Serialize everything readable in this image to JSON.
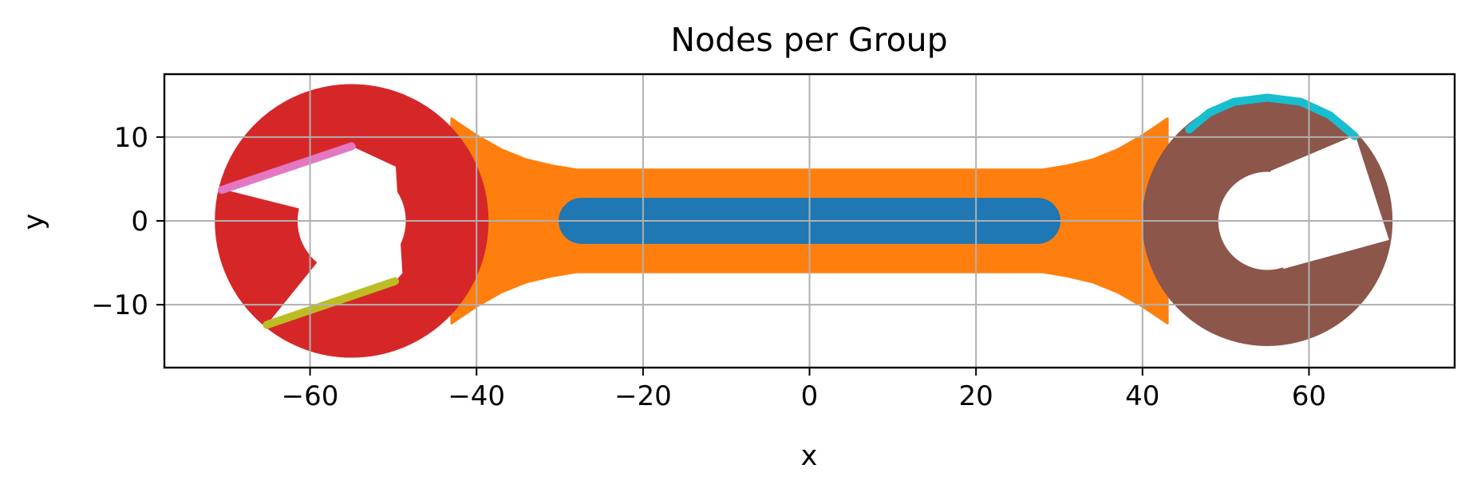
{
  "chart_data": {
    "type": "scatter",
    "title": "Nodes per Group",
    "xlabel": "x",
    "ylabel": "y",
    "xlim": [
      -77.5,
      77.5
    ],
    "ylim": [
      -17.5,
      17.5
    ],
    "xticks": [
      -60,
      -40,
      -20,
      0,
      20,
      40,
      60
    ],
    "yticks": [
      -10,
      0,
      10
    ],
    "xtick_labels": [
      "−60",
      "−40",
      "−20",
      "0",
      "20",
      "40",
      "60"
    ],
    "ytick_labels": [
      "−10",
      "0",
      "10"
    ],
    "grid": true,
    "legend": false,
    "series": [
      {
        "color": "#ff7f0e",
        "shape": "handle-polygon",
        "polygon": [
          [
            -43,
            12.2
          ],
          [
            -40,
            10.2
          ],
          [
            -37,
            8.5
          ],
          [
            -34,
            7.3
          ],
          [
            -31,
            6.6
          ],
          [
            -28,
            6.1
          ],
          [
            28,
            6.1
          ],
          [
            31,
            6.6
          ],
          [
            34,
            7.3
          ],
          [
            37,
            8.5
          ],
          [
            40,
            10.2
          ],
          [
            43,
            12.2
          ],
          [
            43,
            -12.2
          ],
          [
            40,
            -10.2
          ],
          [
            37,
            -8.5
          ],
          [
            34,
            -7.3
          ],
          [
            31,
            -6.6
          ],
          [
            28,
            -6.1
          ],
          [
            -28,
            -6.1
          ],
          [
            -31,
            -6.6
          ],
          [
            -34,
            -7.3
          ],
          [
            -37,
            -8.5
          ],
          [
            -40,
            -10.2
          ],
          [
            -43,
            -12.2
          ]
        ]
      },
      {
        "color": "#1f77b4",
        "shape": "capsule",
        "x_range": [
          -30,
          30
        ],
        "y_range": [
          -2.6,
          2.6
        ]
      },
      {
        "color": "#d62728",
        "shape": "wrench-head",
        "center": [
          -55,
          0
        ],
        "outer_radius": 16.3,
        "inner_radius": 6.5,
        "jaw_top": [
          [
            -70.6,
            3.9
          ],
          [
            -55,
            8.8
          ],
          [
            -49.8,
            6.4
          ]
        ],
        "jaw_bottom": [
          [
            -65,
            -12.3
          ],
          [
            -49.8,
            -7.1
          ],
          [
            -49,
            -6.2
          ]
        ]
      },
      {
        "color": "#8c564b",
        "shape": "wrench-head",
        "center": [
          55,
          0
        ],
        "outer_radius": 14.9,
        "inner_radius": 5.9,
        "jaw_top": [
          [
            55.5,
            5.9
          ],
          [
            65.5,
            10.1
          ]
        ],
        "jaw_bottom": [
          [
            57,
            -5.6
          ],
          [
            69.5,
            -2.2
          ]
        ]
      },
      {
        "color": "#e377c2",
        "shape": "line",
        "points": [
          [
            -70.6,
            3.7
          ],
          [
            -55,
            8.9
          ]
        ]
      },
      {
        "color": "#bcbd22",
        "shape": "line",
        "points": [
          [
            -65.2,
            -12.4
          ],
          [
            -49.8,
            -7.2
          ]
        ]
      },
      {
        "color": "#17becf",
        "shape": "arc",
        "points": [
          [
            45.6,
            10.9
          ],
          [
            48,
            12.9
          ],
          [
            51,
            14.2
          ],
          [
            55,
            14.7
          ],
          [
            59,
            14.2
          ],
          [
            62.5,
            12.6
          ],
          [
            65.5,
            10.1
          ]
        ]
      }
    ]
  }
}
